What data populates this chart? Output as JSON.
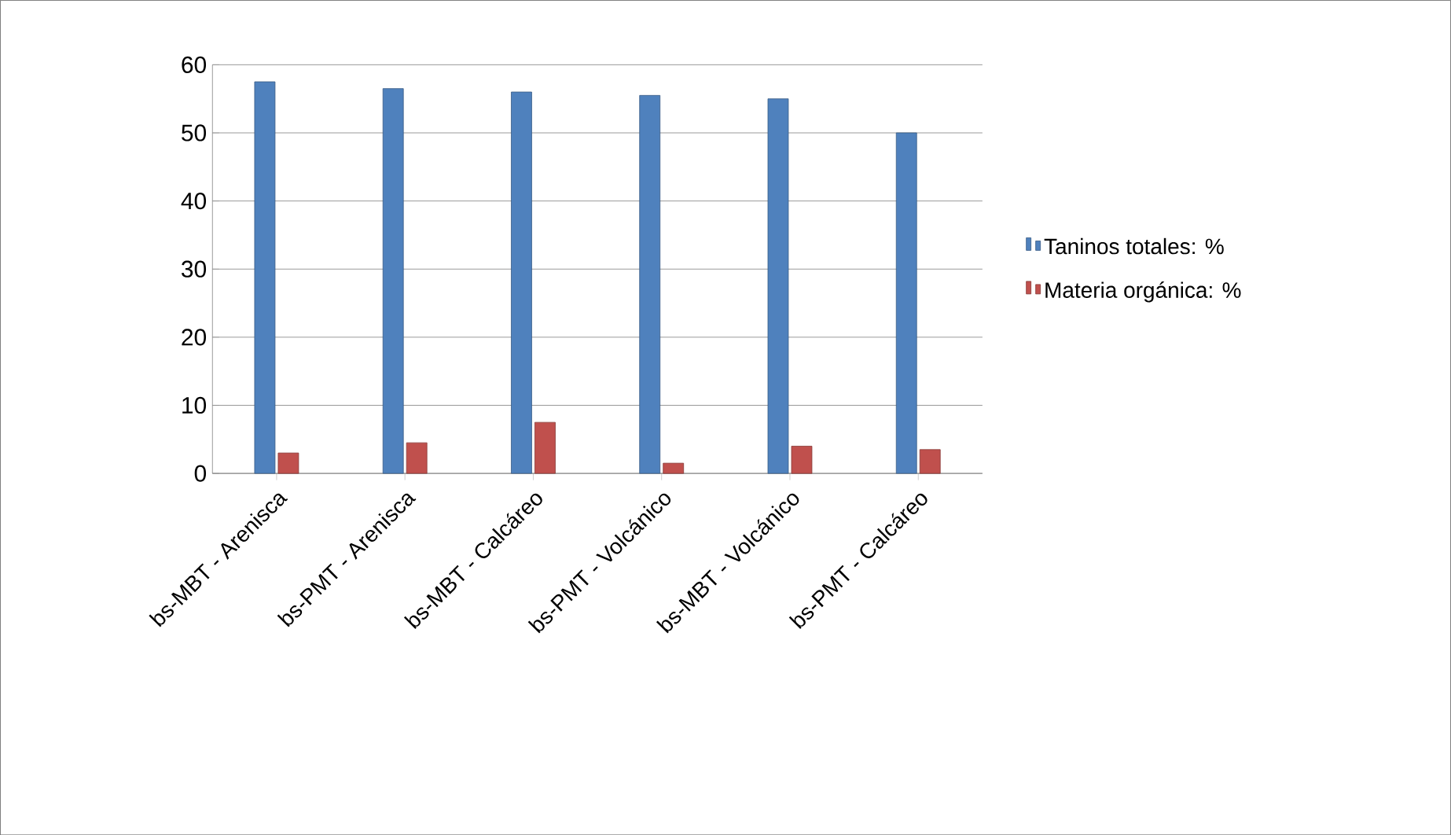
{
  "chart_data": {
    "type": "bar",
    "categories": [
      "bs-MBT - Arenisca",
      "bs-PMT - Arenisca",
      "bs-MBT - Calcáreo",
      "bs-PMT - Volcánico",
      "bs-MBT - Volcánico",
      "bs-PMT - Calcáreo"
    ],
    "series": [
      {
        "name": "Taninos totales: %",
        "color": "#4f81bd",
        "values": [
          57.5,
          56.5,
          56,
          55.5,
          55,
          50
        ]
      },
      {
        "name": "Materia orgánica: %",
        "color": "#c0504d",
        "values": [
          3,
          4.5,
          7.5,
          1.5,
          4,
          3.5
        ]
      }
    ],
    "ylim": [
      0,
      60
    ],
    "yticks": [
      0,
      10,
      20,
      30,
      40,
      50,
      60
    ],
    "grid": "y",
    "legend": "right"
  }
}
